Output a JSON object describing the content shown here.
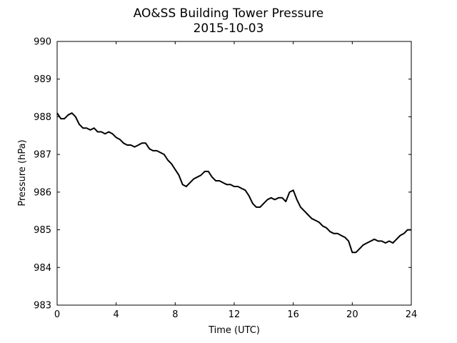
{
  "chart_data": {
    "type": "line",
    "title": "AO&SS Building Tower Pressure",
    "subtitle": "2015-10-03",
    "xlabel": "Time (UTC)",
    "ylabel": "Pressure (hPa)",
    "xlim": [
      0,
      24
    ],
    "ylim": [
      983,
      990
    ],
    "xticks": [
      0,
      4,
      8,
      12,
      16,
      20,
      24
    ],
    "yticks": [
      983,
      984,
      985,
      986,
      987,
      988,
      989,
      990
    ],
    "grid": false,
    "line_color": "#000000",
    "series": [
      {
        "x": [
          0,
          0.25,
          0.5,
          0.75,
          1.0,
          1.25,
          1.5,
          1.75,
          2.0,
          2.25,
          2.5,
          2.75,
          3.0,
          3.25,
          3.5,
          3.75,
          4.0,
          4.25,
          4.5,
          4.75,
          5.0,
          5.25,
          5.5,
          5.75,
          6.0,
          6.25,
          6.5,
          6.75,
          7.0,
          7.25,
          7.5,
          7.75,
          8.0,
          8.25,
          8.5,
          8.75,
          9.0,
          9.25,
          9.5,
          9.75,
          10.0,
          10.25,
          10.5,
          10.75,
          11.0,
          11.25,
          11.5,
          11.75,
          12.0,
          12.25,
          12.5,
          12.75,
          13.0,
          13.25,
          13.5,
          13.75,
          14.0,
          14.25,
          14.5,
          14.75,
          15.0,
          15.25,
          15.5,
          15.75,
          16.0,
          16.25,
          16.5,
          16.75,
          17.0,
          17.25,
          17.5,
          17.75,
          18.0,
          18.25,
          18.5,
          18.75,
          19.0,
          19.25,
          19.5,
          19.75,
          20.0,
          20.25,
          20.5,
          20.75,
          21.0,
          21.25,
          21.5,
          21.75,
          22.0,
          22.25,
          22.5,
          22.75,
          23.0,
          23.25,
          23.5,
          23.75,
          24.0
        ],
        "y": [
          988.1,
          987.95,
          987.95,
          988.05,
          988.1,
          988.0,
          987.8,
          987.7,
          987.7,
          987.65,
          987.7,
          987.6,
          987.6,
          987.55,
          987.6,
          987.55,
          987.45,
          987.4,
          987.3,
          987.25,
          987.25,
          987.2,
          987.25,
          987.3,
          987.3,
          987.15,
          987.1,
          987.1,
          987.05,
          987.0,
          986.85,
          986.75,
          986.6,
          986.45,
          986.2,
          986.15,
          986.25,
          986.35,
          986.4,
          986.45,
          986.55,
          986.55,
          986.4,
          986.3,
          986.3,
          986.25,
          986.2,
          986.2,
          986.15,
          986.15,
          986.1,
          986.05,
          985.9,
          985.7,
          985.6,
          985.6,
          985.7,
          985.8,
          985.85,
          985.8,
          985.85,
          985.85,
          985.75,
          986.0,
          986.05,
          985.8,
          985.6,
          985.5,
          985.4,
          985.3,
          985.25,
          985.2,
          985.1,
          985.05,
          984.95,
          984.9,
          984.9,
          984.85,
          984.8,
          984.7,
          984.4,
          984.4,
          984.5,
          984.6,
          984.65,
          984.7,
          984.75,
          984.7,
          984.7,
          984.65,
          984.7,
          984.65,
          984.75,
          984.85,
          984.9,
          985.0,
          985.0
        ]
      }
    ]
  }
}
